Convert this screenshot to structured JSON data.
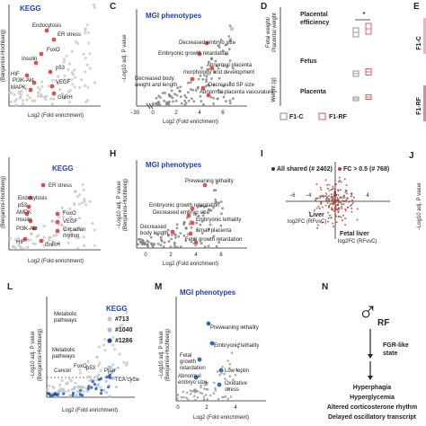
{
  "panel_a": {
    "title": "KEGG",
    "y_label": "(Benjamini-Hochberg)",
    "x_label": "Log2 (Fold enrichment)",
    "labels": [
      "Endocytosis",
      "ER stress",
      "FoxO",
      "Insulin",
      "p53",
      "HIF",
      "PI3K-Akt",
      "MAPK",
      "VEGF",
      "GnRH"
    ]
  },
  "panel_c": {
    "letter": "C",
    "title": "MGI phenotypes",
    "y_label": "−Log10 adj. P value",
    "x_label": "Log2 (Fold enrichment)",
    "x_ticks": [
      "−30",
      "0",
      "2",
      "4",
      "6"
    ],
    "labels": [
      "Decreased embryo size",
      "Embryonic growth retardation",
      "Abnormal placenta",
      "morphology and development",
      "Decreased body",
      "weight and length",
      "Decreased SP size",
      "Abnormal placenta vasculature"
    ]
  },
  "panel_d": {
    "letter": "D",
    "y_label_top": [
      "Fetal weight/",
      "Placental weight"
    ],
    "groups": [
      "Placental",
      "efficiency",
      "Fetus",
      "Placenta"
    ],
    "significance": "*",
    "y_label": "Weight (g)",
    "legend": [
      "F1-C",
      "F1-RF"
    ]
  },
  "panel_e": {
    "letter": "E",
    "rows": [
      "F1-C",
      "F1-RF"
    ]
  },
  "panel_f": {
    "title": "KEGG",
    "y_label": "(Benjamini-Hochberg)",
    "x_label": "Log2 (Fold enrichment)",
    "labels": [
      "ER stress",
      "Endocytosis",
      "p53",
      "AMPK",
      "Insulin",
      "PI3K-Akt",
      "FoxO",
      "VEGF",
      "Circadian",
      "rhythm",
      "HIF",
      "GnRH"
    ]
  },
  "panel_h": {
    "letter": "H",
    "title": "MGI phenotypes",
    "y_label": [
      "−Log10 adj. P value",
      "(Benjamini-Hochberg)"
    ],
    "x_label": "Log2 (Fold enrichment)",
    "x_ticks": [
      "0",
      "2",
      "4",
      "6"
    ],
    "labels": [
      "Preweaning lethality",
      "Embryonic growth retardation",
      "Decreased embryo size",
      "Embryonic lethality",
      "Decreased",
      "body length",
      "Small placenta",
      "Fetal growth retardation"
    ]
  },
  "panel_i": {
    "letter": "I",
    "legend": [
      "All shared (# 2402)",
      "FC > 0.5 (# 768)"
    ],
    "ticks": [
      "−6",
      "−4",
      "−2",
      "0",
      "2",
      "4"
    ],
    "y_label": [
      "Liver",
      "log2FC (RFvsC)"
    ],
    "x_label": [
      "Fetal liver",
      "log2FC (RFvsC)"
    ]
  },
  "panel_j": {
    "letter": "J",
    "y_label": "−Log10 adj. P value"
  },
  "panel_l": {
    "letter": "L",
    "y_label": [
      "−Log10 adj. P value",
      "(Benjamini-Hochberg)"
    ],
    "x_label": "Log2 (Fold enrichment)",
    "labels": [
      "Metabolic",
      "pathways",
      "Metabolic",
      "pathways",
      "Cancer",
      "FoxO",
      "p53",
      "Ppar",
      "TCA cycle"
    ],
    "legend_title": "KEGG",
    "legend": [
      "#713",
      "#1040",
      "#1286"
    ]
  },
  "panel_m": {
    "letter": "M",
    "title": "MGI phenotypes",
    "y_label": [
      "−Log10 adj. P value",
      "(Benjamini-Hochberg)"
    ],
    "x_label": "Log2 (Fold enrichment)",
    "x_ticks": [
      "0",
      "2",
      "4"
    ],
    "labels": [
      "Preweaning lethality",
      "Embryonic lethality",
      "Fetal",
      "growth",
      "retardation",
      "Abnormal",
      "embryo size",
      "Low leptin",
      "Oxidative",
      "stress"
    ]
  },
  "panel_n": {
    "letter": "N",
    "symbol": "♂",
    "subscript": "RF",
    "state": [
      "FGR-like",
      "state"
    ],
    "outcomes": [
      "Hyperphagia",
      "Hyperglycemia",
      "Altered corticosterone rhythm",
      "Delayed oscillatory transcript"
    ]
  }
}
